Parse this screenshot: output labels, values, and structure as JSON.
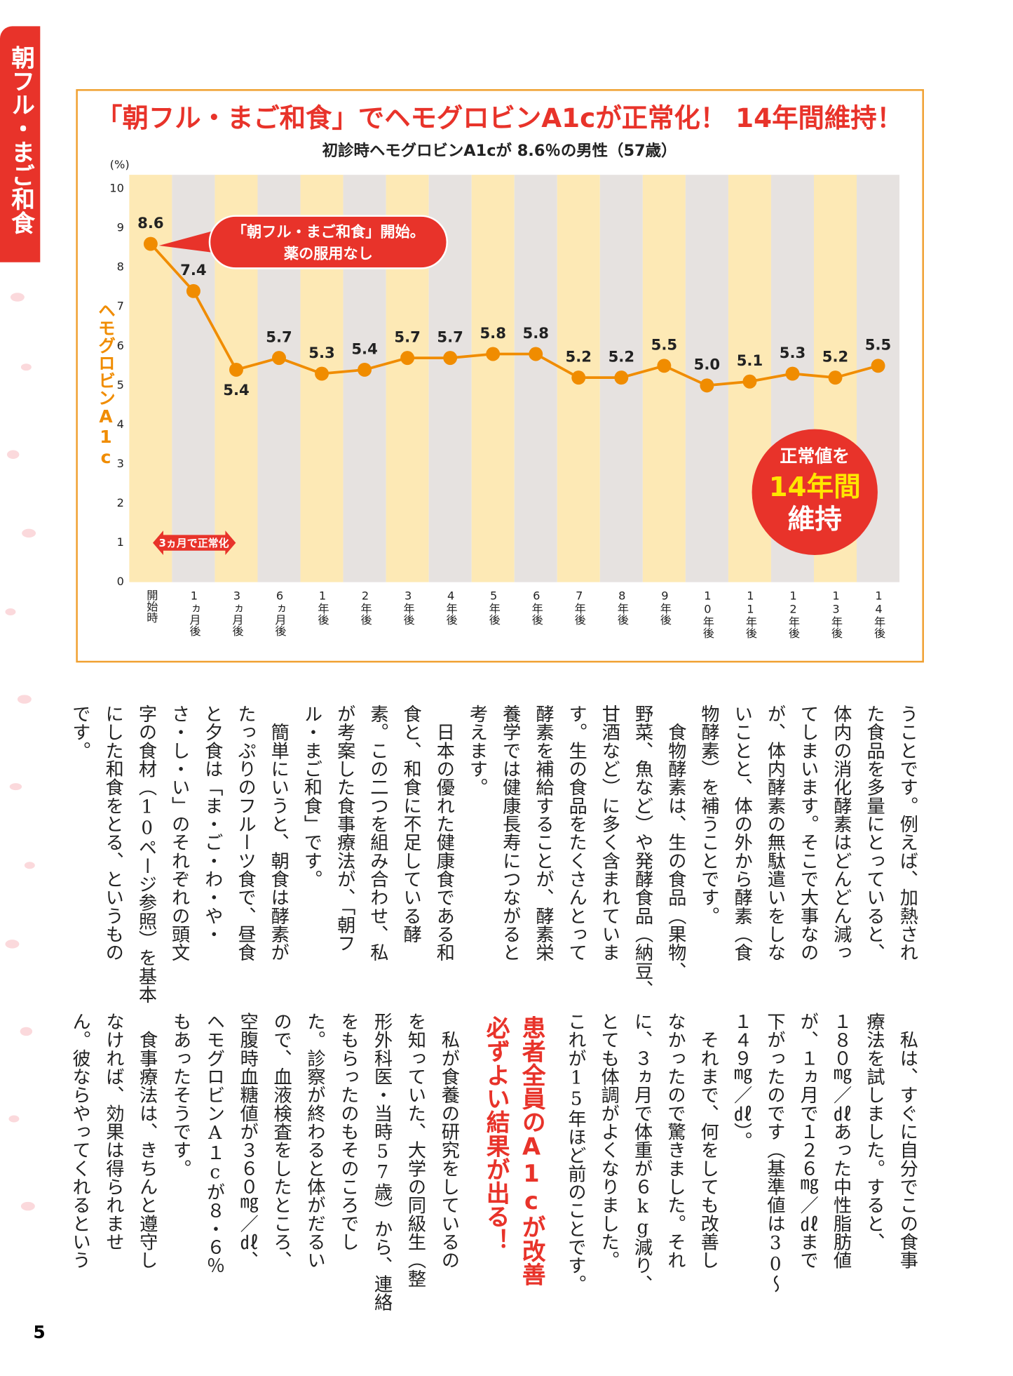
{
  "sidebar": {
    "label": "朝フル・まご和食"
  },
  "chart_data": {
    "type": "line",
    "title": "「朝フル・まご和食」でヘモグロビンA1cが正常化！ 14年間維持！",
    "subtitle": "初診時ヘモグロビンA1cが 8.6％の男性（57歳）",
    "y_label": "ヘモグロビンA1c",
    "y_unit": "(%)",
    "categories": [
      "開始時",
      "1ヵ月後",
      "3ヵ月後",
      "6ヵ月後",
      "1年後",
      "2年後",
      "3年後",
      "4年後",
      "5年後",
      "6年後",
      "7年後",
      "8年後",
      "9年後",
      "10年後",
      "11年後",
      "12年後",
      "13年後",
      "14年後"
    ],
    "values": [
      8.6,
      7.4,
      5.4,
      5.7,
      5.3,
      5.4,
      5.7,
      5.7,
      5.8,
      5.8,
      5.2,
      5.2,
      5.5,
      5.0,
      5.1,
      5.3,
      5.2,
      5.5
    ],
    "value_labels": [
      "8.6",
      "7.4",
      "5.4",
      "5.7",
      "5.3",
      "5.4",
      "5.7",
      "5.7",
      "5.8",
      "5.8",
      "5.2",
      "5.2",
      "5.5",
      "5.0",
      "5.1",
      "5.3",
      "5.2",
      "5.5"
    ],
    "color": "#f08c00",
    "band_colors": [
      "#fde9b5",
      "#e6e2e0"
    ],
    "ylim": [
      0,
      10
    ],
    "yticks": [
      0,
      1,
      2,
      3,
      4,
      5,
      6,
      7,
      8,
      9,
      10
    ],
    "callout": [
      "「朝フル・まご和食」開始。",
      "薬の服用なし"
    ],
    "arrow_label": "3ヵ月で正常化",
    "badge": [
      "正常値を",
      "14年間",
      "維持"
    ]
  },
  "article": {
    "top_columns": [
      "うことです。例えば、加熱され",
      "た食品を多量にとっていると、",
      "体内の消化酵素はどんどん減っ",
      "てしまいます。そこで大事なの",
      "が、体内酵素の無駄遣いをしな",
      "いことと、体の外から酵素（食",
      "物酵素）を補うことです。",
      "　食物酵素は、生の食品（果物、",
      "野菜、魚など）や発酵食品（納豆、",
      "甘酒など）に多く含まれていま",
      "す。生の食品をたくさんとって",
      "酵素を補給することが、酵素栄",
      "養学では健康長寿につながると",
      "考えます。",
      "　日本の優れた健康食である和",
      "食と、和食に不足している酵",
      "素。この二つを組み合わせ、私",
      "が考案した食事療法が、「朝フ",
      "ル・まご和食」です。",
      "　簡単にいうと、朝食は酵素が",
      "たっぷりのフルーツ食で、昼食",
      "と夕食は「ま・ご・わ・や・",
      "さ・し・い」のそれぞれの頭文",
      "字の食材（10ページ参照）を基本",
      "にした和食をとる、というもの",
      "です。"
    ],
    "bottom_columns_a": [
      "　私は、すぐに自分でこの食事",
      "療法を試しました。すると、",
      "１８０㎎／㎗あった中性脂肪値",
      "が、１ヵ月で１２６㎎／㎗まで",
      "下がったのです（基準値は30～",
      "１４９㎎／㎗）。",
      "　それまで、何をしても改善し",
      "なかったので驚きました。それ",
      "に、３ヵ月で体重が６kg減り、",
      "とても体調がよくなりました。",
      "これが15年ほど前のことです。"
    ],
    "heading": [
      "患者全員のA1cが改善",
      "必ずよい結果が出る！"
    ],
    "bottom_columns_b": [
      "　私が食養の研究をしているの",
      "を知っていた、大学の同級生（整",
      "形外科医・当時57歳）から、連絡",
      "をもらったのもそのころでし",
      "た。診察が終わると体がだるい",
      "ので、血液検査をしたところ、",
      "空腹時血糖値が３６０㎎／㎗、",
      "ヘモグロビンA１cが８・６％",
      "もあったそうです。",
      "　食事療法は、きちんと遵守し",
      "なければ、効果は得られませ",
      "ん。彼ならやってくれるという"
    ]
  },
  "page_number": "5"
}
